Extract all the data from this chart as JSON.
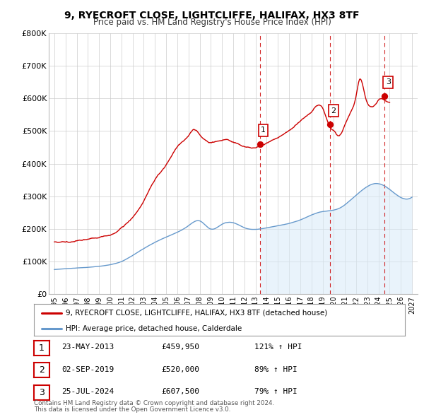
{
  "title": "9, RYECROFT CLOSE, LIGHTCLIFFE, HALIFAX, HX3 8TF",
  "subtitle": "Price paid vs. HM Land Registry's House Price Index (HPI)",
  "legend_line1": "9, RYECROFT CLOSE, LIGHTCLIFFE, HALIFAX, HX3 8TF (detached house)",
  "legend_line2": "HPI: Average price, detached house, Calderdale",
  "table_rows": [
    [
      "1",
      "23-MAY-2013",
      "£459,950",
      "121% ↑ HPI"
    ],
    [
      "2",
      "02-SEP-2019",
      "£520,000",
      "89% ↑ HPI"
    ],
    [
      "3",
      "25-JUL-2024",
      "£607,500",
      "79% ↑ HPI"
    ]
  ],
  "footer1": "Contains HM Land Registry data © Crown copyright and database right 2024.",
  "footer2": "This data is licensed under the Open Government Licence v3.0.",
  "sale_dates": [
    2013.388,
    2019.671,
    2024.56
  ],
  "sale_values": [
    459950,
    520000,
    607500
  ],
  "sale_labels": [
    "1",
    "2",
    "3"
  ],
  "vline_dates": [
    2013.388,
    2019.671,
    2024.56
  ],
  "hpi_shade_start": 2013.388,
  "red_line_color": "#cc0000",
  "blue_line_color": "#6699cc",
  "hpi_shade_color": "#d8eaf8",
  "grid_color": "#cccccc",
  "background_color": "#ffffff",
  "ylim": [
    0,
    800000
  ],
  "xlim": [
    1994.5,
    2027.5
  ],
  "yticks": [
    0,
    100000,
    200000,
    300000,
    400000,
    500000,
    600000,
    700000,
    800000
  ],
  "ytick_labels": [
    "£0",
    "£100K",
    "£200K",
    "£300K",
    "£400K",
    "£500K",
    "£600K",
    "£700K",
    "£800K"
  ],
  "xticks": [
    1995,
    1996,
    1997,
    1998,
    1999,
    2000,
    2001,
    2002,
    2003,
    2004,
    2005,
    2006,
    2007,
    2008,
    2009,
    2010,
    2011,
    2012,
    2013,
    2014,
    2015,
    2016,
    2017,
    2018,
    2019,
    2020,
    2021,
    2022,
    2023,
    2024,
    2025,
    2026,
    2027
  ],
  "hpi_keypoints": [
    [
      1995.0,
      75000
    ],
    [
      1997.0,
      80000
    ],
    [
      1999.0,
      85000
    ],
    [
      2001.0,
      100000
    ],
    [
      2003.0,
      140000
    ],
    [
      2005.0,
      175000
    ],
    [
      2007.0,
      210000
    ],
    [
      2008.0,
      225000
    ],
    [
      2009.0,
      200000
    ],
    [
      2010.0,
      215000
    ],
    [
      2011.0,
      220000
    ],
    [
      2012.0,
      205000
    ],
    [
      2013.0,
      200000
    ],
    [
      2014.0,
      205000
    ],
    [
      2015.5,
      215000
    ],
    [
      2017.0,
      230000
    ],
    [
      2018.0,
      245000
    ],
    [
      2019.0,
      255000
    ],
    [
      2020.5,
      265000
    ],
    [
      2021.5,
      290000
    ],
    [
      2022.5,
      320000
    ],
    [
      2023.5,
      340000
    ],
    [
      2024.5,
      335000
    ],
    [
      2025.5,
      310000
    ],
    [
      2027.0,
      300000
    ]
  ],
  "prop_keypoints": [
    [
      1995.0,
      160000
    ],
    [
      1996.0,
      162000
    ],
    [
      1997.0,
      165000
    ],
    [
      1998.0,
      170000
    ],
    [
      1999.0,
      175000
    ],
    [
      2000.0,
      180000
    ],
    [
      2001.0,
      205000
    ],
    [
      2002.0,
      240000
    ],
    [
      2003.0,
      290000
    ],
    [
      2004.0,
      355000
    ],
    [
      2005.0,
      400000
    ],
    [
      2006.0,
      455000
    ],
    [
      2007.0,
      490000
    ],
    [
      2007.5,
      510000
    ],
    [
      2008.0,
      495000
    ],
    [
      2009.0,
      470000
    ],
    [
      2010.0,
      480000
    ],
    [
      2011.0,
      475000
    ],
    [
      2012.0,
      460000
    ],
    [
      2013.388,
      459950
    ],
    [
      2014.0,
      470000
    ],
    [
      2015.0,
      490000
    ],
    [
      2016.0,
      510000
    ],
    [
      2017.0,
      540000
    ],
    [
      2018.0,
      570000
    ],
    [
      2019.0,
      580000
    ],
    [
      2019.671,
      520000
    ],
    [
      2020.0,
      510000
    ],
    [
      2020.5,
      495000
    ],
    [
      2021.0,
      530000
    ],
    [
      2021.5,
      570000
    ],
    [
      2022.0,
      620000
    ],
    [
      2022.3,
      670000
    ],
    [
      2022.8,
      620000
    ],
    [
      2023.2,
      590000
    ],
    [
      2023.8,
      600000
    ],
    [
      2024.0,
      610000
    ],
    [
      2024.56,
      607500
    ],
    [
      2025.0,
      600000
    ]
  ]
}
